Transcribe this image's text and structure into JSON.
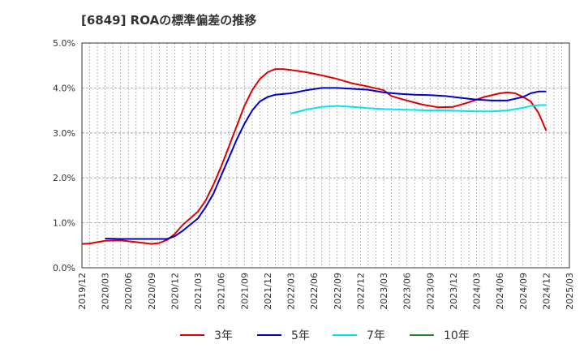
{
  "chart_data": {
    "type": "line",
    "title": "[6849]  ROAの標準偏差の推移",
    "xlabel": "",
    "ylabel": "",
    "ylim": [
      0,
      5
    ],
    "y_ticks": [
      "0.0%",
      "1.0%",
      "2.0%",
      "3.0%",
      "4.0%",
      "5.0%"
    ],
    "x_ticks": [
      "2019/12",
      "2020/03",
      "2020/06",
      "2020/09",
      "2020/12",
      "2021/03",
      "2021/06",
      "2021/09",
      "2021/12",
      "2022/03",
      "2022/06",
      "2022/09",
      "2022/12",
      "2023/03",
      "2023/06",
      "2023/09",
      "2023/12",
      "2024/03",
      "2024/06",
      "2024/09",
      "2024/12",
      "2025/03"
    ],
    "grid": true,
    "legend_position": "bottom",
    "series": [
      {
        "name": "3年",
        "color": "#e00000",
        "points": [
          [
            "2019/12",
            0.53
          ],
          [
            "2020/01",
            0.54
          ],
          [
            "2020/03",
            0.6
          ],
          [
            "2020/05",
            0.61
          ],
          [
            "2020/07",
            0.57
          ],
          [
            "2020/09",
            0.53
          ],
          [
            "2020/10",
            0.55
          ],
          [
            "2020/11",
            0.62
          ],
          [
            "2020/12",
            0.75
          ],
          [
            "2021/01",
            0.95
          ],
          [
            "2021/03",
            1.25
          ],
          [
            "2021/04",
            1.5
          ],
          [
            "2021/05",
            1.85
          ],
          [
            "2021/06",
            2.25
          ],
          [
            "2021/07",
            2.7
          ],
          [
            "2021/08",
            3.15
          ],
          [
            "2021/09",
            3.6
          ],
          [
            "2021/10",
            3.95
          ],
          [
            "2021/11",
            4.2
          ],
          [
            "2021/12",
            4.35
          ],
          [
            "2022/01",
            4.42
          ],
          [
            "2022/02",
            4.42
          ],
          [
            "2022/03",
            4.4
          ],
          [
            "2022/05",
            4.35
          ],
          [
            "2022/07",
            4.28
          ],
          [
            "2022/09",
            4.2
          ],
          [
            "2022/11",
            4.1
          ],
          [
            "2023/01",
            4.03
          ],
          [
            "2023/03",
            3.95
          ],
          [
            "2023/04",
            3.82
          ],
          [
            "2023/06",
            3.72
          ],
          [
            "2023/08",
            3.63
          ],
          [
            "2023/10",
            3.57
          ],
          [
            "2023/12",
            3.58
          ],
          [
            "2024/02",
            3.68
          ],
          [
            "2024/04",
            3.8
          ],
          [
            "2024/06",
            3.88
          ],
          [
            "2024/07",
            3.9
          ],
          [
            "2024/08",
            3.88
          ],
          [
            "2024/09",
            3.8
          ],
          [
            "2024/10",
            3.7
          ],
          [
            "2024/11",
            3.45
          ],
          [
            "2024/12",
            3.05
          ]
        ]
      },
      {
        "name": "5年",
        "color": "#0000cc",
        "points": [
          [
            "2020/03",
            0.65
          ],
          [
            "2020/05",
            0.64
          ],
          [
            "2020/07",
            0.64
          ],
          [
            "2020/09",
            0.64
          ],
          [
            "2020/11",
            0.64
          ],
          [
            "2020/12",
            0.7
          ],
          [
            "2021/01",
            0.82
          ],
          [
            "2021/03",
            1.1
          ],
          [
            "2021/04",
            1.35
          ],
          [
            "2021/05",
            1.65
          ],
          [
            "2021/06",
            2.05
          ],
          [
            "2021/07",
            2.45
          ],
          [
            "2021/08",
            2.85
          ],
          [
            "2021/09",
            3.2
          ],
          [
            "2021/10",
            3.5
          ],
          [
            "2021/11",
            3.7
          ],
          [
            "2021/12",
            3.8
          ],
          [
            "2022/01",
            3.85
          ],
          [
            "2022/03",
            3.88
          ],
          [
            "2022/05",
            3.95
          ],
          [
            "2022/07",
            4.0
          ],
          [
            "2022/09",
            4.0
          ],
          [
            "2022/11",
            3.98
          ],
          [
            "2023/01",
            3.96
          ],
          [
            "2023/03",
            3.9
          ],
          [
            "2023/05",
            3.87
          ],
          [
            "2023/07",
            3.85
          ],
          [
            "2023/09",
            3.84
          ],
          [
            "2023/11",
            3.82
          ],
          [
            "2024/01",
            3.78
          ],
          [
            "2024/03",
            3.74
          ],
          [
            "2024/05",
            3.72
          ],
          [
            "2024/07",
            3.72
          ],
          [
            "2024/09",
            3.8
          ],
          [
            "2024/10",
            3.88
          ],
          [
            "2024/11",
            3.92
          ],
          [
            "2024/12",
            3.92
          ]
        ]
      },
      {
        "name": "7年",
        "color": "#00e5ee",
        "points": [
          [
            "2022/03",
            3.43
          ],
          [
            "2022/05",
            3.52
          ],
          [
            "2022/07",
            3.58
          ],
          [
            "2022/09",
            3.6
          ],
          [
            "2022/11",
            3.58
          ],
          [
            "2023/01",
            3.55
          ],
          [
            "2023/03",
            3.53
          ],
          [
            "2023/05",
            3.52
          ],
          [
            "2023/07",
            3.51
          ],
          [
            "2023/09",
            3.5
          ],
          [
            "2023/11",
            3.5
          ],
          [
            "2024/01",
            3.49
          ],
          [
            "2024/03",
            3.48
          ],
          [
            "2024/05",
            3.48
          ],
          [
            "2024/07",
            3.5
          ],
          [
            "2024/09",
            3.56
          ],
          [
            "2024/10",
            3.6
          ],
          [
            "2024/11",
            3.62
          ],
          [
            "2024/12",
            3.62
          ]
        ]
      },
      {
        "name": "10年",
        "color": "#228b22",
        "points": []
      }
    ]
  }
}
